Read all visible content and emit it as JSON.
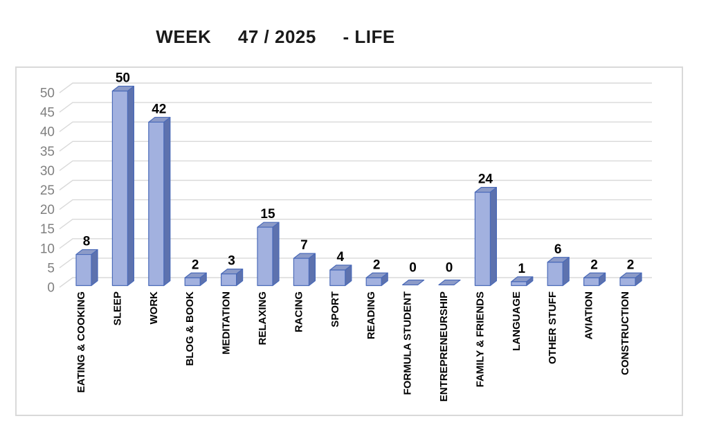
{
  "title": "WEEK     47 / 2025     - LIFE",
  "chart_data": {
    "type": "bar",
    "style": "3d-clustered-column",
    "title": "WEEK 47 / 2025 - LIFE",
    "categories": [
      "EATING & COOKING",
      "SLEEP",
      "WORK",
      "BLOG & BOOK",
      "MEDITATION",
      "RELAXING",
      "RACING",
      "SPORT",
      "READING",
      "FORMULA STUDENT",
      "ENTREPRENEURSHIP",
      "FAMILY & FRIENDS",
      "LANGUAGE",
      "OTHER STUFF",
      "AVIATION",
      "CONSTRUCTION"
    ],
    "values": [
      8,
      50,
      42,
      2,
      3,
      15,
      7,
      4,
      2,
      0,
      0,
      24,
      1,
      6,
      2,
      2
    ],
    "data_labels": [
      8,
      50,
      42,
      2,
      3,
      15,
      7,
      4,
      2,
      0,
      0,
      24,
      1,
      6,
      2,
      2
    ],
    "xlabel": "",
    "ylabel": "",
    "ylim": [
      0,
      50
    ],
    "yticks": [
      0,
      5,
      10,
      15,
      20,
      25,
      30,
      35,
      40,
      45,
      50
    ],
    "grid": true,
    "legend": false,
    "colors": {
      "bar_front": "#a2b1df",
      "bar_side": "#5d72ae",
      "bar_top": "#8c9bc8",
      "bar_border": "#4a6ab8",
      "gridline": "#d9d9d9",
      "frame_border": "#d9d9d9",
      "tick_label": "#7f7f7f",
      "data_label": "#000000",
      "category_label": "#000000",
      "title_color": "#1a1a1a",
      "background": "#ffffff"
    }
  }
}
